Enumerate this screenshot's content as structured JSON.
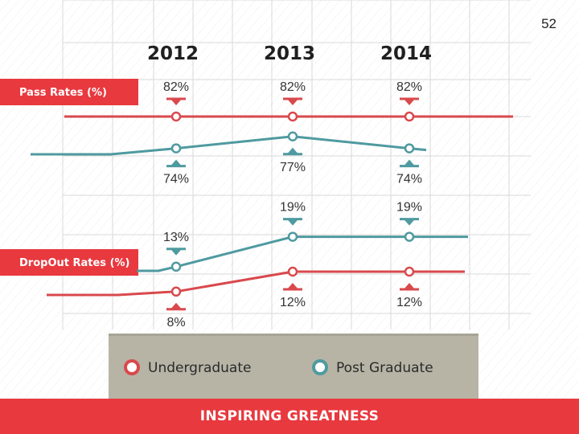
{
  "page_number": "52",
  "footer_text": "INSPIRING GREATNESS",
  "colors": {
    "undergraduate": "#d9494c",
    "post_graduate": "#4f9aa0",
    "label_red": "#e8393f",
    "legend_bg": "#b7b4a6",
    "grid": "#d8d8d8"
  },
  "chart_data": [
    {
      "type": "line",
      "label": "Pass Rates (%)",
      "categories": [
        "2012",
        "2013",
        "2014"
      ],
      "series": [
        {
          "name": "Undergraduate",
          "values": [
            82,
            82,
            82
          ],
          "labels": [
            "82%",
            "82%",
            "82%"
          ]
        },
        {
          "name": "Post Graduate",
          "values": [
            74,
            77,
            74
          ],
          "labels": [
            "74%",
            "77%",
            "74%"
          ]
        }
      ]
    },
    {
      "type": "line",
      "label": "DropOut Rates (%)",
      "categories": [
        "2012",
        "2013",
        "2014"
      ],
      "series": [
        {
          "name": "Undergraduate",
          "values": [
            8,
            12,
            12
          ],
          "labels": [
            "8%",
            "12%",
            "12%"
          ]
        },
        {
          "name": "Post Graduate",
          "values": [
            13,
            19,
            19
          ],
          "labels": [
            "13%",
            "19%",
            "19%"
          ]
        }
      ]
    }
  ],
  "legend": [
    {
      "label": "Undergraduate",
      "series": "undergraduate"
    },
    {
      "label": "Post Graduate",
      "series": "post_graduate"
    }
  ]
}
